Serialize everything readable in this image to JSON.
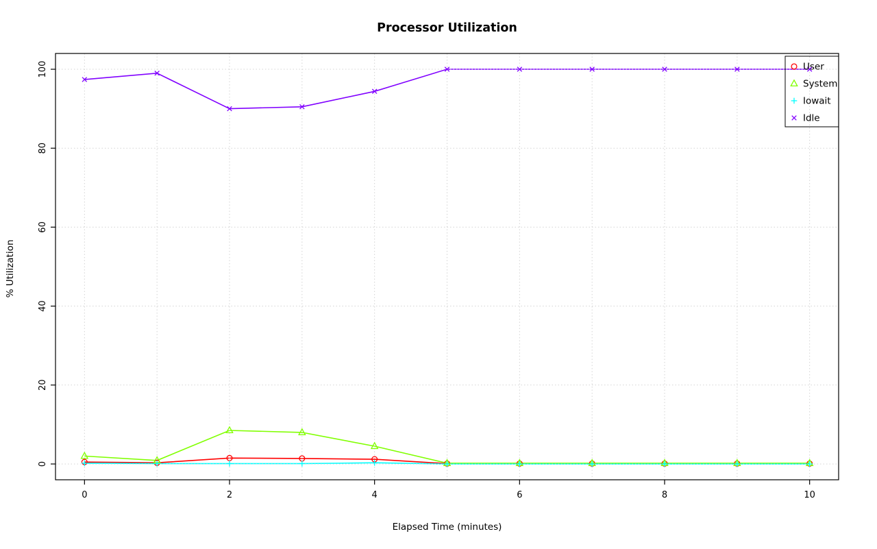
{
  "chart_data": {
    "type": "line",
    "title": "Processor Utilization",
    "xlabel": "Elapsed Time (minutes)",
    "ylabel": "% Utilization",
    "x": [
      0,
      1,
      2,
      3,
      4,
      5,
      6,
      7,
      8,
      9,
      10
    ],
    "xlim": [
      0,
      10
    ],
    "ylim": [
      0,
      100
    ],
    "x_ticks": [
      0,
      2,
      4,
      6,
      8,
      10
    ],
    "y_ticks": [
      0,
      20,
      40,
      60,
      80,
      100
    ],
    "x_grid_ticks": [
      0,
      1,
      2,
      3,
      4,
      5,
      6,
      7,
      8,
      9,
      10
    ],
    "grid": true,
    "grid_color": "#D3D3D3",
    "background": "#FFFFFF",
    "legend_position": "top-right",
    "series": [
      {
        "name": "User",
        "color": "#FF0000",
        "marker": "circle",
        "values": [
          0.5,
          0.3,
          1.5,
          1.4,
          1.2,
          0.1,
          0.1,
          0.1,
          0.1,
          0.1,
          0.1
        ]
      },
      {
        "name": "System",
        "color": "#80FF00",
        "marker": "triangle",
        "values": [
          2.0,
          0.9,
          8.5,
          8.0,
          4.5,
          0.2,
          0.2,
          0.2,
          0.2,
          0.2,
          0.2
        ]
      },
      {
        "name": "Iowait",
        "color": "#00FFFF",
        "marker": "plus",
        "values": [
          0.2,
          0.1,
          0.1,
          0.1,
          0.3,
          0,
          0,
          0,
          0,
          0,
          0
        ]
      },
      {
        "name": "Idle",
        "color": "#8000FF",
        "marker": "x",
        "values": [
          97.4,
          99.0,
          90.0,
          90.5,
          94.4,
          100,
          100,
          100,
          100,
          100,
          100
        ]
      }
    ]
  }
}
